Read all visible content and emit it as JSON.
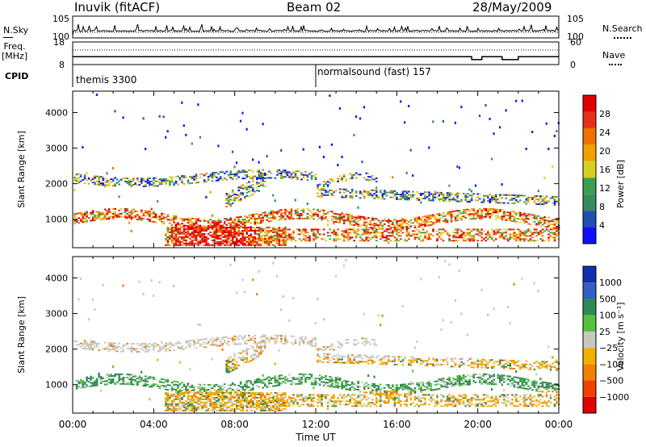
{
  "header": {
    "station": "Inuvik (fitACF)",
    "beam": "Beam 02",
    "date": "28/May/2009"
  },
  "side_labels": {
    "nsky": "N.Sky",
    "freq": "Freq.",
    "freq_unit": "[MHz]",
    "cpid": "CPID",
    "nsearch": "N.Search",
    "nave": "Nave"
  },
  "cpid_segments": [
    {
      "label": "themis 3300",
      "start_hour": 0
    },
    {
      "label": "normalsound (fast) 157",
      "start_hour": 12
    }
  ],
  "chart_data": [
    {
      "type": "line",
      "panel": "noise",
      "y_ticks_left": [
        "10^5",
        "10^0"
      ],
      "y_ticks_right": [
        "10^5",
        "10^0"
      ],
      "series": [
        {
          "name": "N.Sky"
        },
        {
          "name": "N.Search"
        }
      ]
    },
    {
      "type": "line",
      "panel": "frequency",
      "y_ticks_left": [
        "18",
        "8"
      ],
      "y_ticks_right": [
        "60",
        "0"
      ],
      "ylim_left": [
        8,
        18
      ],
      "ylim_right": [
        0,
        60
      ],
      "series": [
        {
          "name": "Freq.",
          "x": [
            0,
            12,
            19.7,
            20.2,
            21.2,
            22,
            24
          ],
          "values": [
            11.5,
            11.5,
            10.2,
            11.5,
            10.2,
            11.5,
            11.5
          ]
        },
        {
          "name": "Nave"
        }
      ]
    },
    {
      "type": "heatmap",
      "panel": "power",
      "ylabel": "Slant Range [km]",
      "y_ticks": [
        "1000",
        "2000",
        "3000",
        "4000"
      ],
      "ylim": [
        200,
        4600
      ],
      "xlim_hours": [
        0,
        24
      ],
      "colorbar": {
        "title": "Power [dB]",
        "ticks": [
          "4",
          "8",
          "12",
          "16",
          "20",
          "24",
          "28"
        ],
        "colors": [
          "#1010ff",
          "#2050b0",
          "#3a8a60",
          "#3aa050",
          "#d8d020",
          "#f0a000",
          "#f07000",
          "#e83018",
          "#e00000"
        ]
      }
    },
    {
      "type": "heatmap",
      "panel": "velocity",
      "ylabel": "Slant Range [km]",
      "y_ticks": [
        "1000",
        "2000",
        "3000",
        "4000"
      ],
      "ylim": [
        200,
        4600
      ],
      "xlim_hours": [
        0,
        24
      ],
      "xlabel": "Time UT",
      "x_ticks": [
        "00:00",
        "04:00",
        "08:00",
        "12:00",
        "16:00",
        "20:00",
        "00:00"
      ],
      "colorbar": {
        "title": "Velocity [m s⁻¹]",
        "ticks": [
          "1000",
          "500",
          "100",
          "25",
          "−25",
          "−100",
          "−500",
          "−1000"
        ],
        "colors": [
          "#1030b0",
          "#3060c0",
          "#2e8a50",
          "#58c040",
          "#c8c8c0",
          "#f0b000",
          "#f08000",
          "#f04000",
          "#e00000"
        ]
      }
    }
  ]
}
